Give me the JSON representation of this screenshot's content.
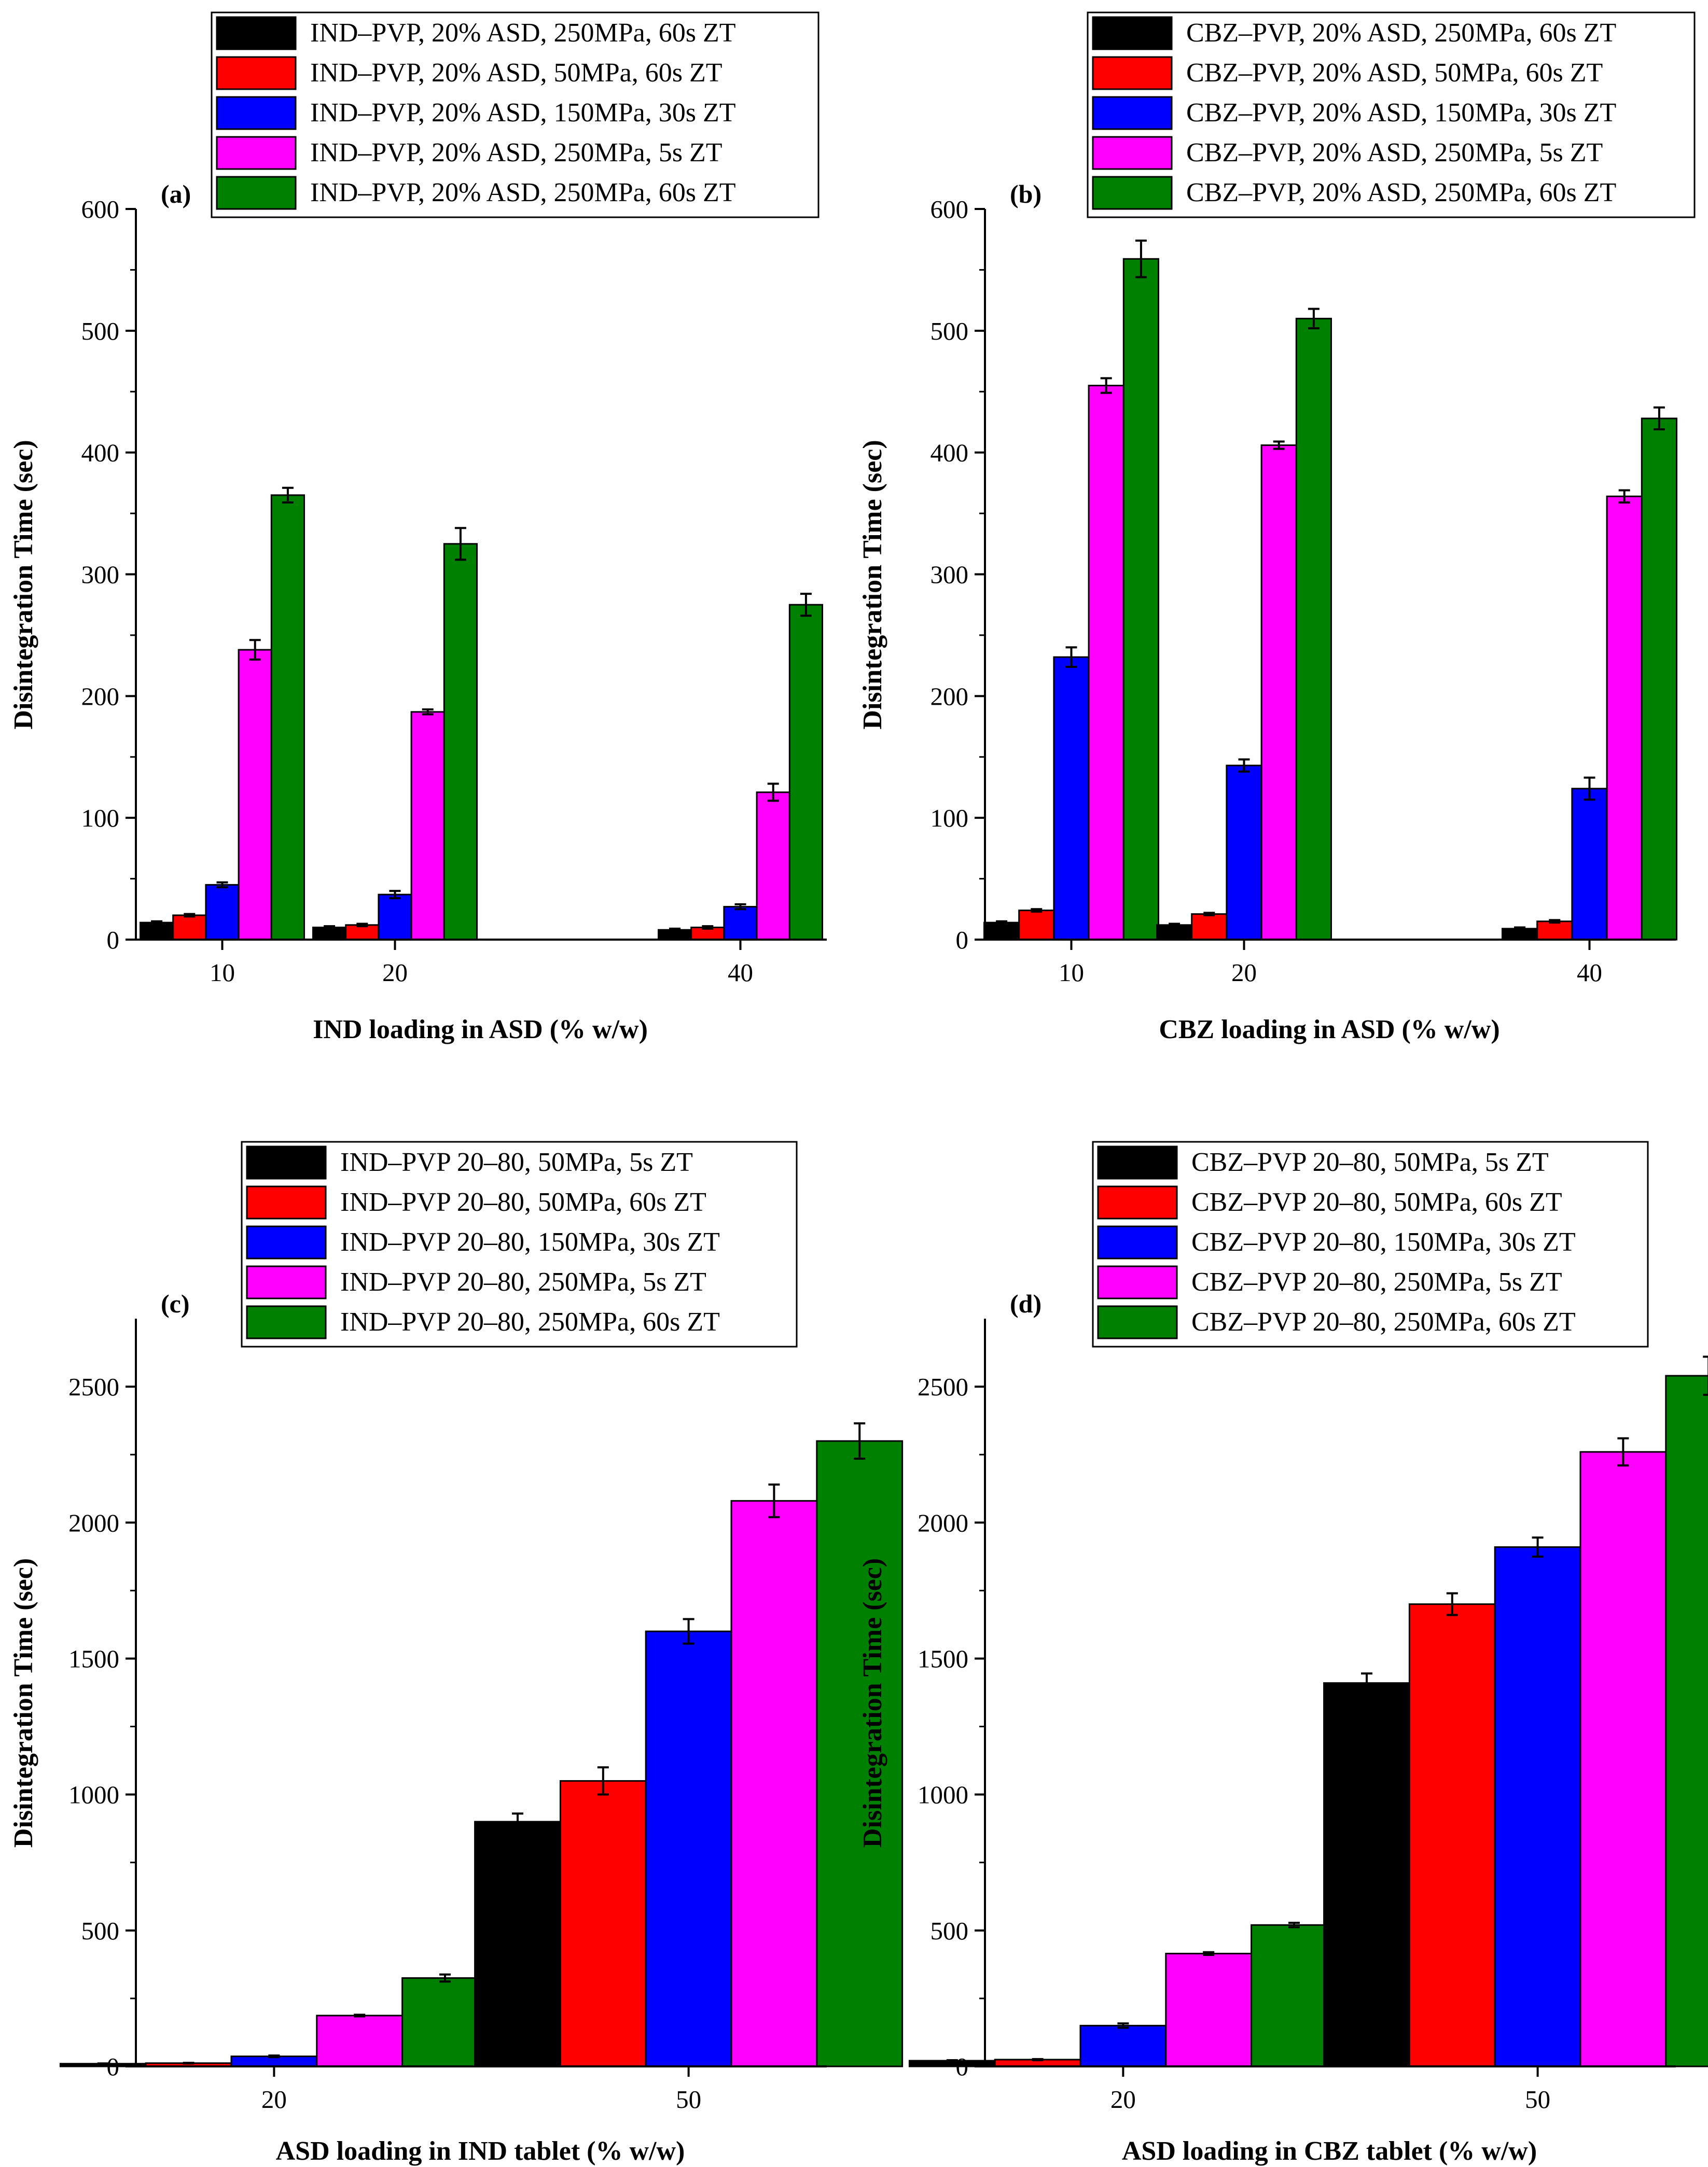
{
  "colors": [
    "#000000",
    "#ff0000",
    "#0000ff",
    "#ff00ff",
    "#008000"
  ],
  "chart_data": [
    {
      "type": "bar",
      "panel_label": "(a)",
      "categories": [
        "10",
        "20",
        "40"
      ],
      "category_positions": [
        10,
        20,
        40
      ],
      "ylim": [
        0,
        600
      ],
      "yticks": [
        0,
        100,
        200,
        300,
        400,
        500,
        600
      ],
      "xlabel": "IND loading in ASD (% w/w)",
      "ylabel": "Disintegration Time (sec)",
      "legend_position": "top",
      "series": [
        {
          "name": "IND–PVP, 20% ASD, 250MPa, 60s ZT",
          "color": "#000000",
          "values": [
            14,
            10,
            8
          ],
          "errors": [
            1,
            1,
            1
          ]
        },
        {
          "name": "IND–PVP, 20% ASD, 50MPa, 60s ZT",
          "color": "#ff0000",
          "values": [
            20,
            12,
            10
          ],
          "errors": [
            1,
            1,
            1
          ]
        },
        {
          "name": "IND–PVP, 20% ASD, 150MPa, 30s ZT",
          "color": "#0000ff",
          "values": [
            45,
            37,
            27
          ],
          "errors": [
            2,
            3,
            2
          ]
        },
        {
          "name": "IND–PVP, 20% ASD, 250MPa, 5s ZT",
          "color": "#ff00ff",
          "values": [
            238,
            187,
            121
          ],
          "errors": [
            8,
            2,
            7
          ]
        },
        {
          "name": "IND–PVP, 20% ASD, 250MPa, 60s ZT",
          "color": "#008000",
          "values": [
            365,
            325,
            275
          ],
          "errors": [
            6,
            13,
            9
          ]
        }
      ]
    },
    {
      "type": "bar",
      "panel_label": "(b)",
      "categories": [
        "10",
        "20",
        "40"
      ],
      "category_positions": [
        10,
        20,
        40
      ],
      "ylim": [
        0,
        600
      ],
      "yticks": [
        0,
        100,
        200,
        300,
        400,
        500,
        600
      ],
      "xlabel": "CBZ loading in ASD (% w/w)",
      "ylabel": "Disintegration Time (sec)",
      "legend_position": "top",
      "series": [
        {
          "name": "CBZ–PVP, 20% ASD, 250MPa, 60s ZT",
          "color": "#000000",
          "values": [
            14,
            12,
            9
          ],
          "errors": [
            1,
            1,
            1
          ]
        },
        {
          "name": "CBZ–PVP, 20% ASD, 50MPa, 60s ZT",
          "color": "#ff0000",
          "values": [
            24,
            21,
            15
          ],
          "errors": [
            1,
            1,
            1
          ]
        },
        {
          "name": "CBZ–PVP, 20% ASD, 150MPa, 30s ZT",
          "color": "#0000ff",
          "values": [
            232,
            143,
            124
          ],
          "errors": [
            8,
            5,
            9
          ]
        },
        {
          "name": "CBZ–PVP, 20% ASD, 250MPa, 5s ZT",
          "color": "#ff00ff",
          "values": [
            455,
            406,
            364
          ],
          "errors": [
            6,
            3,
            5
          ]
        },
        {
          "name": "CBZ–PVP, 20% ASD, 250MPa, 60s ZT",
          "color": "#008000",
          "values": [
            559,
            510,
            428
          ],
          "errors": [
            15,
            8,
            9
          ]
        }
      ]
    },
    {
      "type": "bar",
      "panel_label": "(c)",
      "categories": [
        "20",
        "50"
      ],
      "category_positions": [
        20,
        50
      ],
      "ylim": [
        0,
        2750
      ],
      "yticks": [
        0,
        500,
        1000,
        1500,
        2000,
        2500
      ],
      "xlabel": "ASD loading in IND tablet (% w/w)",
      "ylabel": "Disintegration Time (sec)",
      "legend_position": "top",
      "series": [
        {
          "name": "IND–PVP 20–80, 50MPa, 5s ZT",
          "color": "#000000",
          "values": [
            10,
            900
          ],
          "errors": [
            1,
            30
          ]
        },
        {
          "name": "IND–PVP 20–80, 50MPa, 60s ZT",
          "color": "#ff0000",
          "values": [
            12,
            1050
          ],
          "errors": [
            1,
            50
          ]
        },
        {
          "name": "IND–PVP 20–80, 150MPa, 30s ZT",
          "color": "#0000ff",
          "values": [
            37,
            1600
          ],
          "errors": [
            3,
            45
          ]
        },
        {
          "name": "IND–PVP 20–80, 250MPa, 5s ZT",
          "color": "#ff00ff",
          "values": [
            187,
            2080
          ],
          "errors": [
            3,
            60
          ]
        },
        {
          "name": "IND–PVP 20–80, 250MPa, 60s ZT",
          "color": "#008000",
          "values": [
            325,
            2300
          ],
          "errors": [
            13,
            65
          ]
        }
      ]
    },
    {
      "type": "bar",
      "panel_label": "(d)",
      "categories": [
        "20",
        "50"
      ],
      "category_positions": [
        20,
        50
      ],
      "ylim": [
        0,
        2750
      ],
      "yticks": [
        0,
        500,
        1000,
        1500,
        2000,
        2500
      ],
      "xlabel": "ASD loading in CBZ tablet (% w/w)",
      "ylabel": "Disintegration Time (sec)",
      "legend_position": "top",
      "series": [
        {
          "name": "CBZ–PVP 20–80, 50MPa, 5s ZT",
          "color": "#000000",
          "values": [
            21,
            1410
          ],
          "errors": [
            2,
            35
          ]
        },
        {
          "name": "CBZ–PVP 20–80, 50MPa, 60s ZT",
          "color": "#ff0000",
          "values": [
            25,
            1700
          ],
          "errors": [
            2,
            40
          ]
        },
        {
          "name": "CBZ–PVP 20–80, 150MPa, 30s ZT",
          "color": "#0000ff",
          "values": [
            150,
            1910
          ],
          "errors": [
            8,
            35
          ]
        },
        {
          "name": "CBZ–PVP 20–80, 250MPa, 5s ZT",
          "color": "#ff00ff",
          "values": [
            415,
            2260
          ],
          "errors": [
            5,
            50
          ]
        },
        {
          "name": "CBZ–PVP 20–80, 250MPa, 60s ZT",
          "color": "#008000",
          "values": [
            520,
            2540
          ],
          "errors": [
            8,
            70
          ]
        }
      ]
    }
  ]
}
